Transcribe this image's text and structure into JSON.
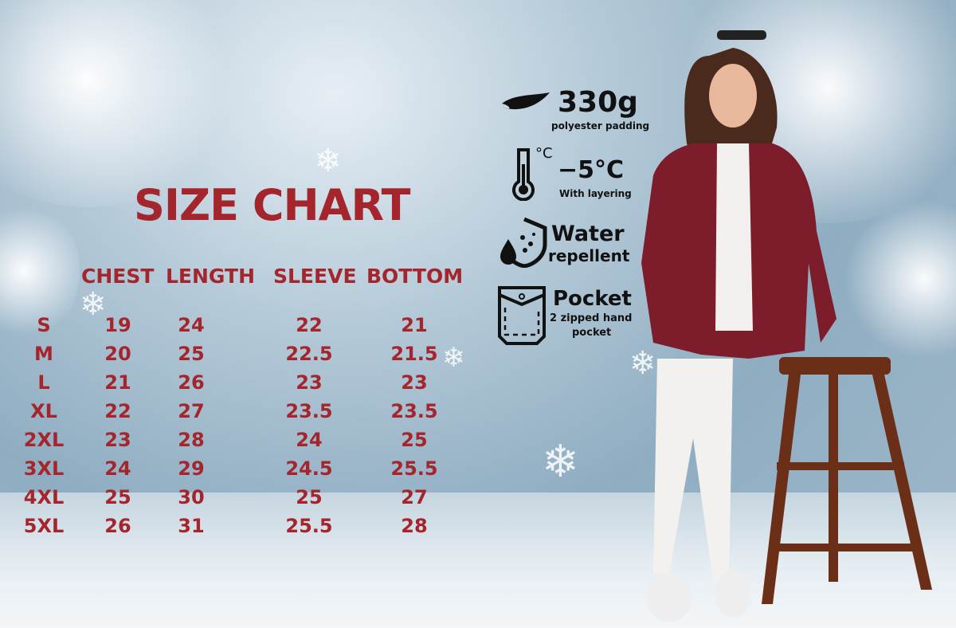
{
  "title": "SIZE CHART",
  "columns": [
    "CHEST",
    "LENGTH",
    "SLEEVE",
    "BOTTOM"
  ],
  "rows": [
    {
      "size": "S",
      "chest": "19",
      "length": "24",
      "sleeve": "22",
      "bottom": "21"
    },
    {
      "size": "M",
      "chest": "20",
      "length": "25",
      "sleeve": "22.5",
      "bottom": "21.5"
    },
    {
      "size": "L",
      "chest": "21",
      "length": "26",
      "sleeve": "23",
      "bottom": "23"
    },
    {
      "size": "XL",
      "chest": "22",
      "length": "27",
      "sleeve": "23.5",
      "bottom": "23.5"
    },
    {
      "size": "2XL",
      "chest": "23",
      "length": "28",
      "sleeve": "24",
      "bottom": "25"
    },
    {
      "size": "3XL",
      "chest": "24",
      "length": "29",
      "sleeve": "24.5",
      "bottom": "25.5"
    },
    {
      "size": "4XL",
      "chest": "25",
      "length": "30",
      "sleeve": "25",
      "bottom": "27"
    },
    {
      "size": "5XL",
      "chest": "26",
      "length": "31",
      "sleeve": "25.5",
      "bottom": "28"
    }
  ],
  "features": [
    {
      "icon": "feather-icon",
      "main": "330g",
      "sub": "polyester padding"
    },
    {
      "icon": "thermometer-icon",
      "icon_label": "°C",
      "main": "−5°C",
      "sub": "With layering"
    },
    {
      "icon": "water-shield-icon",
      "main": "Water",
      "sub": "repellent"
    },
    {
      "icon": "pocket-icon",
      "main": "Pocket",
      "sub": "2  zipped hand",
      "sub2": "pocket"
    }
  ],
  "colors": {
    "accent": "#a4262c",
    "jacket": "#7d1c2a",
    "text_dark": "#111111"
  }
}
